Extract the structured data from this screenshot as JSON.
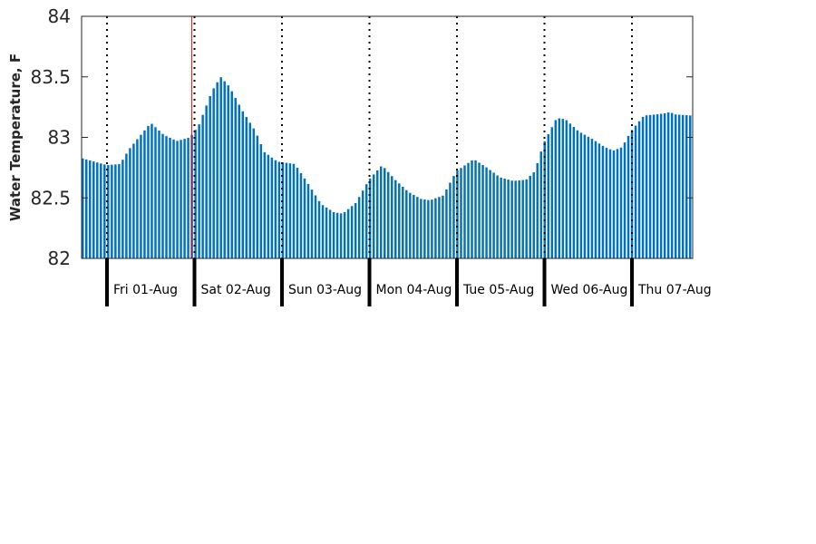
{
  "chart_data": {
    "type": "bar",
    "ylabel": "Water Temperature, F",
    "ylim": [
      82,
      84
    ],
    "yticks": [
      "82",
      "82.5",
      "83",
      "83.5",
      "84"
    ],
    "grid": false,
    "bar_color": "#0072BD",
    "marker_color": "#ff0000",
    "marker_position_day_index": 0.97,
    "x_unit": "days from start of plot",
    "x_range": [
      0,
      7.0
    ],
    "day_labels": [
      "Fri 01-Aug",
      "Sat 02-Aug",
      "Sun 03-Aug",
      "Mon 04-Aug",
      "Tue 05-Aug",
      "Wed 06-Aug",
      "Thu 07-Aug"
    ],
    "keypoints": [
      [
        0.0,
        82.83
      ],
      [
        0.3,
        82.77
      ],
      [
        0.45,
        82.78
      ],
      [
        0.55,
        82.9
      ],
      [
        0.8,
        83.12
      ],
      [
        0.95,
        83.02
      ],
      [
        1.1,
        82.97
      ],
      [
        1.25,
        83.0
      ],
      [
        1.35,
        83.1
      ],
      [
        1.5,
        83.38
      ],
      [
        1.6,
        83.5
      ],
      [
        1.7,
        83.42
      ],
      [
        1.85,
        83.22
      ],
      [
        2.0,
        83.05
      ],
      [
        2.1,
        82.88
      ],
      [
        2.25,
        82.8
      ],
      [
        2.45,
        82.78
      ],
      [
        2.6,
        82.62
      ],
      [
        2.75,
        82.45
      ],
      [
        2.9,
        82.38
      ],
      [
        3.0,
        82.37
      ],
      [
        3.15,
        82.46
      ],
      [
        3.3,
        82.65
      ],
      [
        3.45,
        82.77
      ],
      [
        3.6,
        82.65
      ],
      [
        3.75,
        82.55
      ],
      [
        3.9,
        82.49
      ],
      [
        4.0,
        82.48
      ],
      [
        4.15,
        82.52
      ],
      [
        4.3,
        82.72
      ],
      [
        4.5,
        82.82
      ],
      [
        4.65,
        82.75
      ],
      [
        4.8,
        82.67
      ],
      [
        4.95,
        82.64
      ],
      [
        5.1,
        82.65
      ],
      [
        5.2,
        82.72
      ],
      [
        5.3,
        82.95
      ],
      [
        5.45,
        83.16
      ],
      [
        5.55,
        83.15
      ],
      [
        5.7,
        83.05
      ],
      [
        5.85,
        82.99
      ],
      [
        6.0,
        82.92
      ],
      [
        6.1,
        82.89
      ],
      [
        6.2,
        82.92
      ],
      [
        6.3,
        83.05
      ],
      [
        6.45,
        83.18
      ],
      [
        6.6,
        83.19
      ],
      [
        6.7,
        83.2
      ],
      [
        6.75,
        83.21
      ],
      [
        6.8,
        83.19
      ],
      [
        7.0,
        83.18
      ]
    ]
  }
}
